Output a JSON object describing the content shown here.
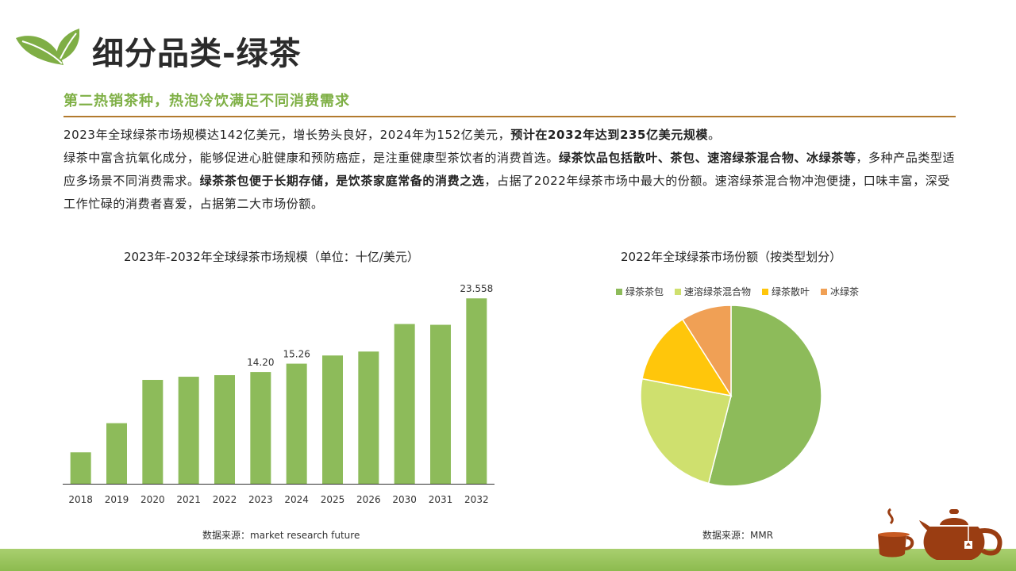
{
  "header": {
    "title": "细分品类-绿茶",
    "subtitle": "第二热销茶种，热泡冷饮满足不同消费需求"
  },
  "body": {
    "p1_a": "2023年全球绿茶市场规模达142亿美元，增长势头良好，2024年为152亿美元，",
    "p1_b": "预计在2032年达到235亿美元规模",
    "p1_c": "。",
    "p2_a": "绿茶中富含抗氧化成分，能够促进心脏健康和预防癌症，是注重健康型茶饮者的消费首选。",
    "p2_b": "绿茶饮品包括散叶、茶包、速溶绿茶混合物、冰绿茶等",
    "p2_c": "，多种产品类型适应多场景不同消费需求。",
    "p2_d": "绿茶茶包便于长期存储，是饮茶家庭常备的消费之选",
    "p2_e": "，占据了2022年绿茶市场中最大的份额。速溶绿茶混合物冲泡便捷，口味丰富，深受工作忙碌的消费者喜爱，占据第二大市场份额。"
  },
  "bar_chart": {
    "title": "2023年-2032年全球绿茶市场规模（单位：十亿/美元）",
    "source": "数据来源：market research future"
  },
  "pie_chart": {
    "title": "2022年全球绿茶市场份额（按类型划分）",
    "source": "数据来源：MMR",
    "legend": [
      "绿茶茶包",
      "速溶绿茶混合物",
      "绿茶散叶",
      "冰绿茶"
    ]
  },
  "colors": {
    "bar": "#8dbb5a",
    "rule": "#b27a2e",
    "subtitle": "#7fb046",
    "pie": [
      "#8dbb5a",
      "#cfe06e",
      "#ffc60b",
      "#f0a055"
    ]
  },
  "chart_data": [
    {
      "type": "bar",
      "categories": [
        "2018",
        "2019",
        "2020",
        "2021",
        "2022",
        "2023",
        "2024",
        "2025",
        "2026",
        "2030",
        "2031",
        "2032"
      ],
      "values": [
        4.0,
        7.7,
        13.2,
        13.6,
        13.8,
        14.2,
        15.26,
        16.3,
        16.8,
        20.3,
        20.2,
        23.558
      ],
      "data_labels": {
        "2023": "14.20",
        "2024": "15.26",
        "2032": "23.558"
      },
      "ylim": [
        0,
        26
      ],
      "title": "2023年-2032年全球绿茶市场规模（单位：十亿/美元）"
    },
    {
      "type": "pie",
      "labels": [
        "绿茶茶包",
        "速溶绿茶混合物",
        "绿茶散叶",
        "冰绿茶"
      ],
      "values": [
        54,
        24,
        13,
        9
      ],
      "title": "2022年全球绿茶市场份额（按类型划分）"
    }
  ]
}
